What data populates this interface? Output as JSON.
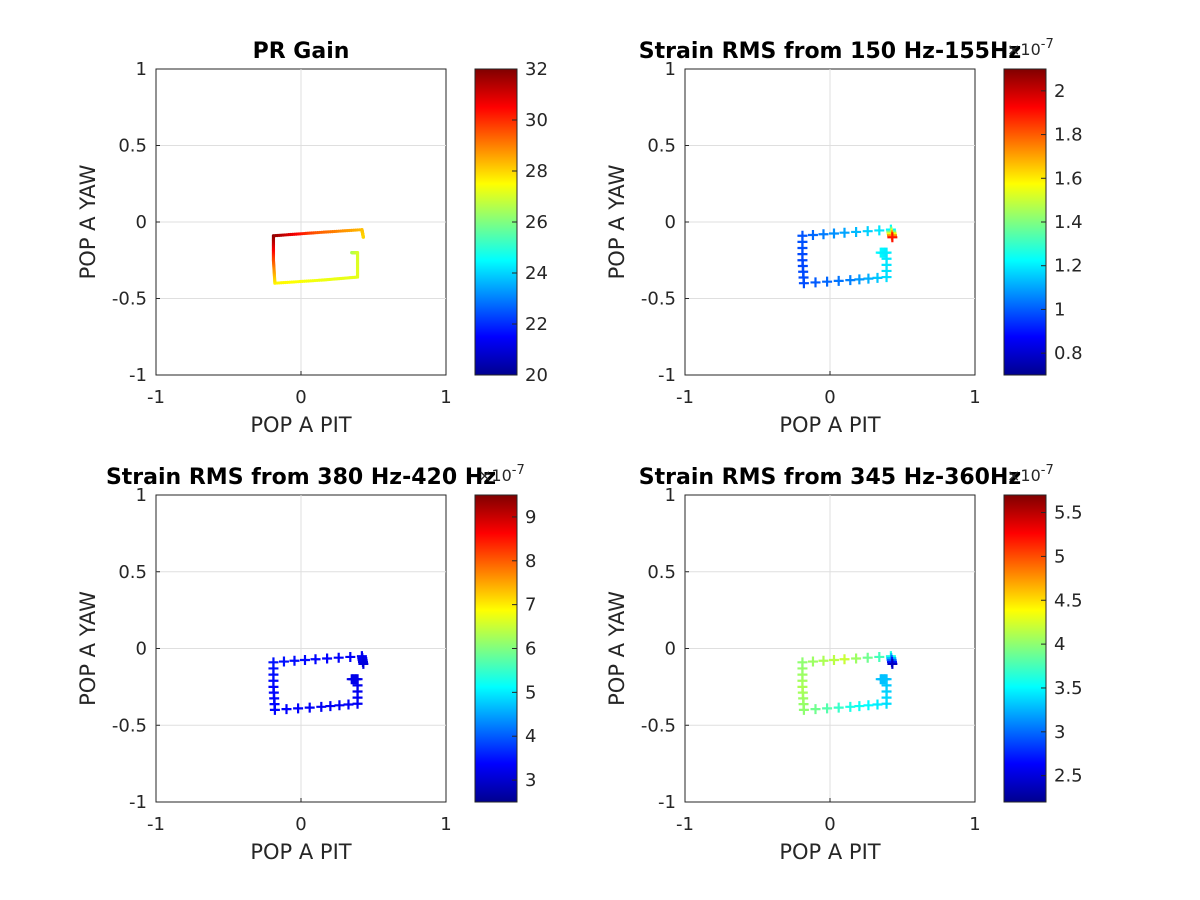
{
  "colormap": [
    "#00008f",
    "#0000ff",
    "#0080ff",
    "#00ffff",
    "#80ff80",
    "#ffff00",
    "#ff8000",
    "#ff0000",
    "#800000"
  ],
  "axis_color": "#262626",
  "grid_color": "#dfdfdf",
  "path_shape": {
    "description": "shared scan path in POP A PIT / POP A YAW units",
    "points": [
      [
        0.35,
        -0.2
      ],
      [
        0.39,
        -0.2
      ],
      [
        0.39,
        -0.36
      ],
      [
        0.14,
        -0.38
      ],
      [
        -0.18,
        -0.4
      ],
      [
        -0.19,
        -0.25
      ],
      [
        -0.19,
        -0.09
      ],
      [
        0.1,
        -0.07
      ],
      [
        0.42,
        -0.05
      ],
      [
        0.43,
        -0.1
      ]
    ]
  },
  "chart_data": [
    {
      "type": "scatter",
      "title": "PR Gain",
      "xlabel": "POP A PIT",
      "ylabel": "POP A YAW",
      "xlim": [
        -1,
        1
      ],
      "ylim": [
        -1,
        1
      ],
      "xticks": [
        "-1",
        "0",
        "1"
      ],
      "yticks": [
        "1",
        "0.5",
        "0",
        "-0.5",
        "-1"
      ],
      "grid": true,
      "marker": "dot",
      "colorbar": {
        "min": 20,
        "max": 32,
        "ticks": [
          "32",
          "30",
          "28",
          "26",
          "24",
          "22",
          "20"
        ],
        "exponent": ""
      },
      "color_values": [
        26.5,
        27.0,
        27.2,
        27.3,
        27.6,
        29.5,
        31.8,
        29.5,
        28.3,
        28.0
      ]
    },
    {
      "type": "scatter",
      "title": "Strain RMS from 150 Hz-155Hz",
      "xlabel": "POP A PIT",
      "ylabel": "POP A YAW",
      "xlim": [
        -1,
        1
      ],
      "ylim": [
        -1,
        1
      ],
      "xticks": [
        "-1",
        "0",
        "1"
      ],
      "yticks": [
        "1",
        "0.5",
        "0",
        "-0.5",
        "-1"
      ],
      "grid": true,
      "marker": "plus",
      "colorbar": {
        "min": 0.7,
        "max": 2.1,
        "ticks": [
          "2",
          "1.8",
          "1.6",
          "1.4",
          "1.2",
          "1",
          "0.8"
        ],
        "exponent": "-7"
      },
      "color_values": [
        1.22,
        1.2,
        1.18,
        1.05,
        0.98,
        0.97,
        0.99,
        1.1,
        1.22,
        1.9
      ]
    },
    {
      "type": "scatter",
      "title": "Strain RMS from 380 Hz-420 Hz",
      "xlabel": "POP A PIT",
      "ylabel": "POP A YAW",
      "xlim": [
        -1,
        1
      ],
      "ylim": [
        -1,
        1
      ],
      "xticks": [
        "-1",
        "0",
        "1"
      ],
      "yticks": [
        "1",
        "0.5",
        "0",
        "-0.5",
        "-1"
      ],
      "grid": true,
      "marker": "plus",
      "colorbar": {
        "min": 2.5,
        "max": 9.5,
        "ticks": [
          "9",
          "8",
          "7",
          "6",
          "5",
          "4",
          "3"
        ],
        "exponent": "-7"
      },
      "color_values": [
        3.2,
        3.2,
        3.3,
        3.3,
        3.4,
        3.4,
        3.5,
        3.4,
        3.3,
        3.1
      ]
    },
    {
      "type": "scatter",
      "title": "Strain RMS from 345 Hz-360Hz",
      "xlabel": "POP A PIT",
      "ylabel": "POP A YAW",
      "xlim": [
        -1,
        1
      ],
      "ylim": [
        -1,
        1
      ],
      "xticks": [
        "-1",
        "0",
        "1"
      ],
      "yticks": [
        "1",
        "0.5",
        "0",
        "-0.5",
        "-1"
      ],
      "grid": true,
      "marker": "plus",
      "colorbar": {
        "min": 2.2,
        "max": 5.7,
        "ticks": [
          "5.5",
          "5",
          "4.5",
          "4",
          "3.5",
          "3",
          "2.5"
        ],
        "exponent": "-7"
      },
      "color_values": [
        3.3,
        3.3,
        3.4,
        3.6,
        4.0,
        4.1,
        4.0,
        4.2,
        3.6,
        2.4
      ]
    }
  ]
}
